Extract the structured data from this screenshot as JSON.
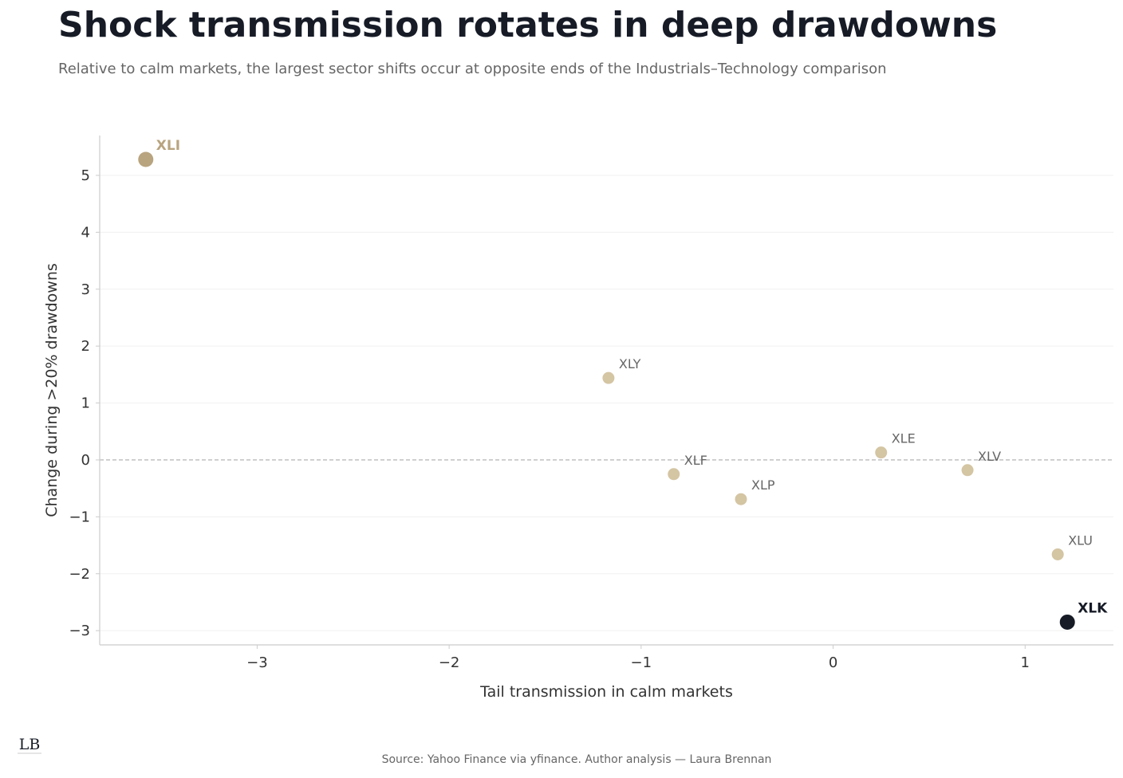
{
  "header": {
    "title": "Shock transmission rotates in deep drawdowns",
    "subtitle": "Relative to calm markets, the largest sector shifts occur at opposite ends of the Industrials–Technology comparison"
  },
  "footer": {
    "source": "Source: Yahoo Finance via yfinance. Author analysis — Laura Brennan",
    "logo_text": "LB"
  },
  "colors": {
    "default_point": "#d4c5a3",
    "highlight_low": "#b8a47f",
    "highlight_high": "#161b26",
    "label_default": "#666666",
    "axis": "#cccccc",
    "grid": "#f0f0f0",
    "zero_line": "#bbbbbb",
    "tick_text": "#333333"
  },
  "chart_data": {
    "type": "scatter",
    "xlabel": "Tail transmission in calm markets",
    "ylabel": "Change during >20% drawdowns",
    "xlim": [
      -3.82,
      1.46
    ],
    "ylim": [
      -3.25,
      5.7
    ],
    "xticks": [
      -3,
      -2,
      -1,
      0,
      1
    ],
    "yticks": [
      -3,
      -2,
      -1,
      0,
      1,
      2,
      3,
      4,
      5
    ],
    "grid": "horizontal",
    "reference_line": {
      "y": 0,
      "style": "dashed"
    },
    "points": [
      {
        "label": "XLI",
        "x": -3.58,
        "y": 5.28,
        "highlight": "low"
      },
      {
        "label": "XLY",
        "x": -1.17,
        "y": 1.44,
        "highlight": "none"
      },
      {
        "label": "XLF",
        "x": -0.83,
        "y": -0.25,
        "highlight": "none"
      },
      {
        "label": "XLP",
        "x": -0.48,
        "y": -0.69,
        "highlight": "none"
      },
      {
        "label": "XLE",
        "x": 0.25,
        "y": 0.13,
        "highlight": "none"
      },
      {
        "label": "XLV",
        "x": 0.7,
        "y": -0.18,
        "highlight": "none"
      },
      {
        "label": "XLU",
        "x": 1.17,
        "y": -1.66,
        "highlight": "none"
      },
      {
        "label": "XLK",
        "x": 1.22,
        "y": -2.85,
        "highlight": "high"
      }
    ]
  }
}
